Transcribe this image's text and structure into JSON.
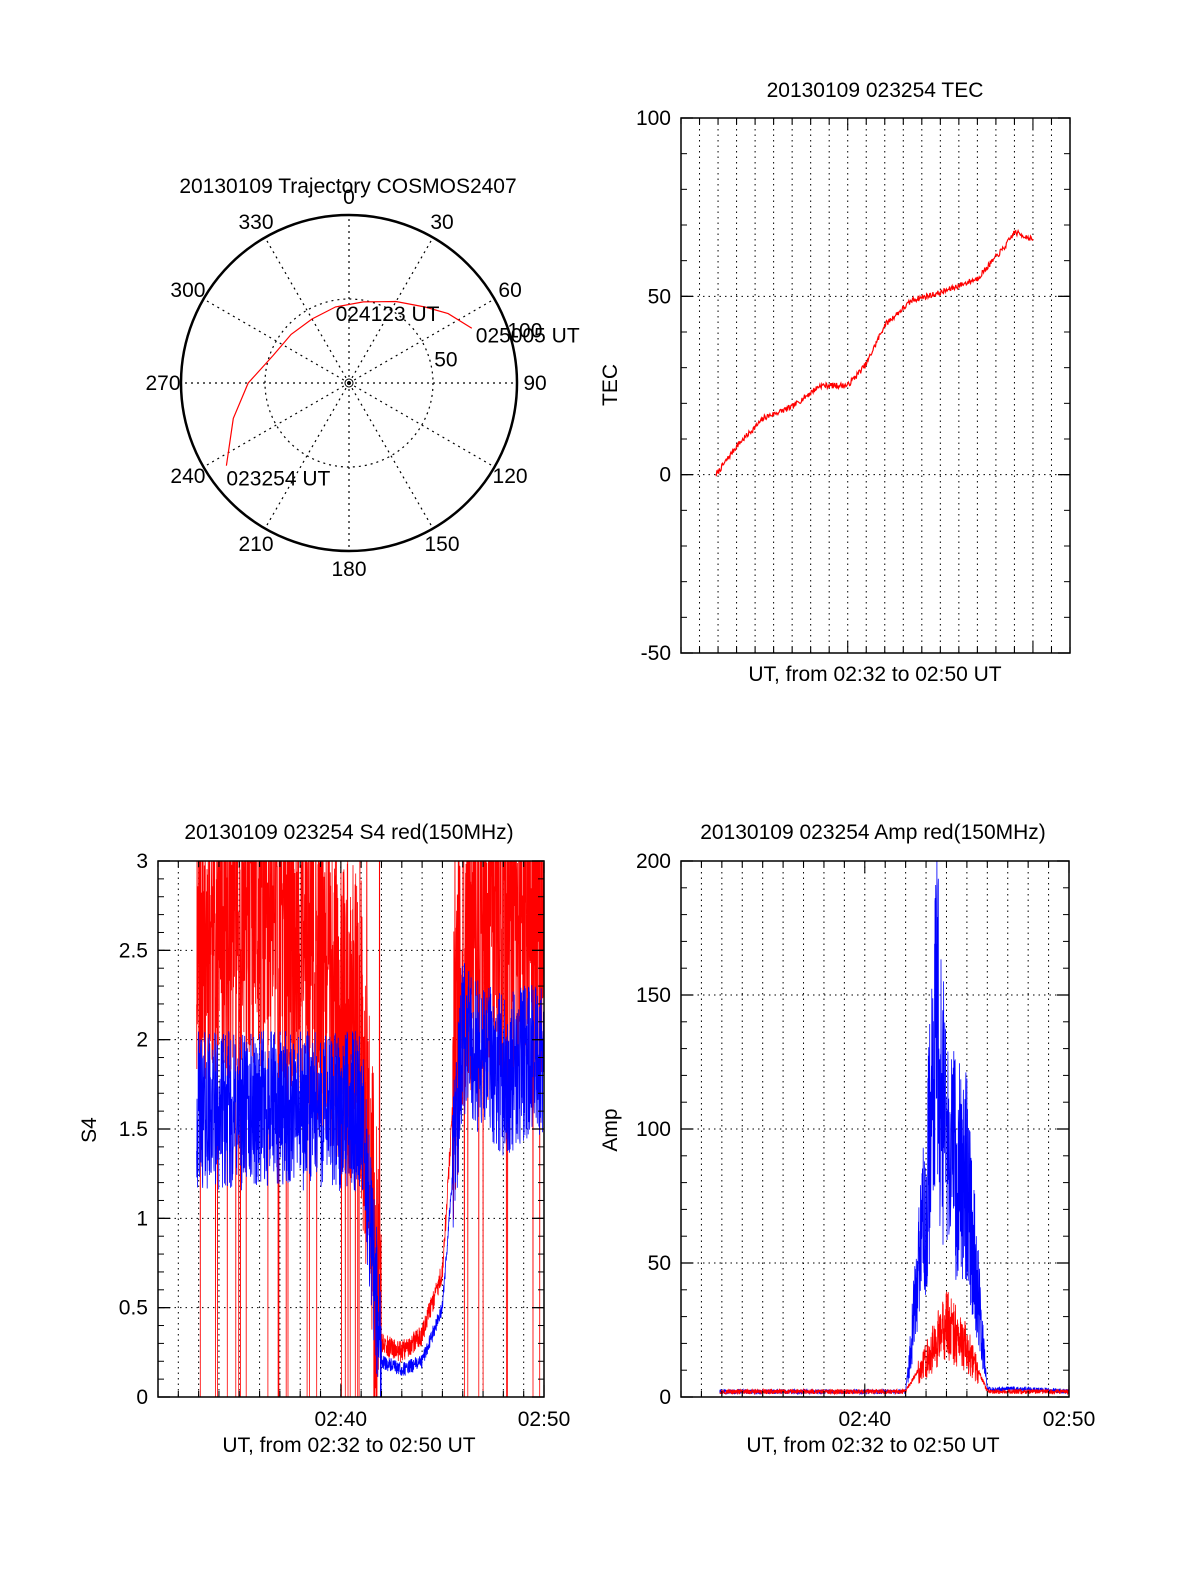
{
  "colors": {
    "red": "#ff0000",
    "blue": "#0000ff",
    "axis": "#000000",
    "background": "#ffffff"
  },
  "chart_data": [
    {
      "type": "polar",
      "title": "20130109 Trajectory COSMOS2407",
      "angle_labels": [
        "0",
        "30",
        "60",
        "90",
        "120",
        "150",
        "180",
        "210",
        "240",
        "270",
        "300",
        "330"
      ],
      "radial_labels": [
        "50",
        "100"
      ],
      "rlim": [
        0,
        100
      ],
      "grid": true,
      "series": [
        {
          "color": "red",
          "points": [
            [
              236,
              88
            ],
            [
              253,
              72
            ],
            [
              270,
              60
            ],
            [
              290,
              48
            ],
            [
              310,
              45
            ],
            [
              330,
              44
            ],
            [
              350,
              46
            ],
            [
              10,
              49
            ],
            [
              30,
              56
            ],
            [
              45,
              64
            ],
            [
              55,
              72
            ],
            [
              66,
              80
            ]
          ]
        }
      ],
      "annotations": [
        {
          "text": "023254 UT",
          "azimuth": 236,
          "elevation": 88
        },
        {
          "text": "024123 UT",
          "azimuth": 350,
          "elevation": 46
        },
        {
          "text": "025005 UT",
          "azimuth": 66,
          "elevation": 80
        }
      ]
    },
    {
      "type": "line",
      "title": "20130109 023254 TEC",
      "xlabel": "UT, from 02:32 to 02:50 UT",
      "ylabel": "TEC",
      "xlim": [
        "02:31",
        "02:52"
      ],
      "ylim": [
        -50,
        100
      ],
      "y_ticks": [
        "-50",
        "0",
        "50",
        "100"
      ],
      "x_ticks": [],
      "grid": "vertical-dotted",
      "series": [
        {
          "color": "red",
          "x": [
            "02:32:54",
            "02:34:00",
            "02:35:30",
            "02:37:00",
            "02:38:30",
            "02:40:00",
            "02:41:00",
            "02:42:00",
            "02:43:30",
            "02:45:00",
            "02:47:00",
            "02:48:30",
            "02:49:00",
            "02:50:00"
          ],
          "y": [
            0,
            8,
            16,
            19,
            25,
            25,
            31,
            42,
            49,
            51,
            55,
            64,
            68,
            66
          ]
        }
      ]
    },
    {
      "type": "line",
      "title": "20130109 023254 S4 red(150MHz)",
      "xlabel": "UT, from 02:32 to 02:50 UT",
      "ylabel": "S4",
      "xlim": [
        "02:31",
        "02:50"
      ],
      "ylim": [
        0,
        3
      ],
      "y_ticks": [
        "0",
        "0.5",
        "1",
        "1.5",
        "2",
        "2.5",
        "3"
      ],
      "x_ticks": [
        "02:40",
        "02:50"
      ],
      "grid": "dotted",
      "series": [
        {
          "color": "red",
          "x": [
            "02:32:54",
            "02:35:00",
            "02:38:00",
            "02:41:00",
            "02:42:00",
            "02:43:00",
            "02:44:00",
            "02:45:00",
            "02:46:00",
            "02:48:00",
            "02:50:00"
          ],
          "y": [
            2.6,
            2.7,
            2.6,
            2.0,
            0.3,
            0.25,
            0.35,
            0.7,
            2.5,
            2.6,
            2.7
          ]
        },
        {
          "color": "blue",
          "x": [
            "02:32:54",
            "02:35:00",
            "02:38:00",
            "02:41:00",
            "02:42:00",
            "02:43:00",
            "02:44:00",
            "02:45:00",
            "02:46:00",
            "02:48:00",
            "02:50:00"
          ],
          "y": [
            1.6,
            1.6,
            1.6,
            1.6,
            0.2,
            0.15,
            0.2,
            0.5,
            2.0,
            1.8,
            1.9
          ]
        }
      ]
    },
    {
      "type": "line",
      "title": "20130109 023254 Amp red(150MHz)",
      "xlabel": "UT, from 02:32 to 02:50 UT",
      "ylabel": "Amp",
      "xlim": [
        "02:31",
        "02:50"
      ],
      "ylim": [
        0,
        200
      ],
      "y_ticks": [
        "0",
        "50",
        "100",
        "150",
        "200"
      ],
      "x_ticks": [
        "02:40",
        "02:50"
      ],
      "grid": "dotted",
      "series": [
        {
          "color": "red",
          "x": [
            "02:32:54",
            "02:42:00",
            "02:43:00",
            "02:44:00",
            "02:45:00",
            "02:46:00",
            "02:50:00"
          ],
          "y": [
            2,
            2,
            15,
            30,
            20,
            2,
            2
          ]
        },
        {
          "color": "blue",
          "x": [
            "02:32:54",
            "02:42:00",
            "02:43:00",
            "02:43:30",
            "02:44:00",
            "02:45:00",
            "02:46:00",
            "02:48:00",
            "02:50:00"
          ],
          "y": [
            2,
            2,
            80,
            160,
            100,
            90,
            3,
            3,
            2
          ]
        }
      ]
    }
  ]
}
